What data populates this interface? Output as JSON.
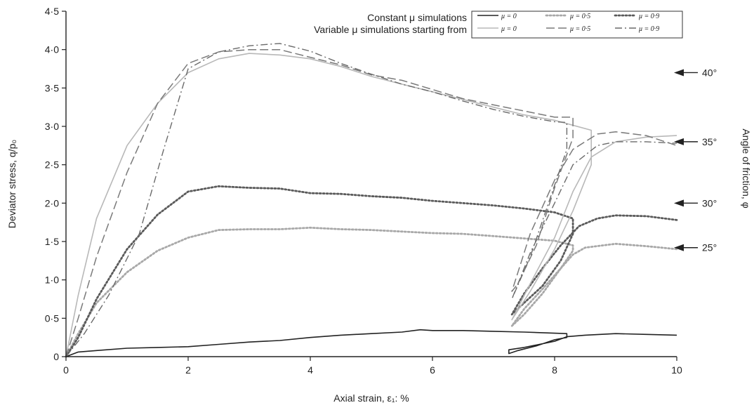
{
  "chart_data": {
    "type": "line",
    "xlabel": "Axial strain, ε₁: %",
    "ylabel": "Deviator stress, q/p₀",
    "y2label": "Angle of friction, φ",
    "xlim": [
      0,
      10
    ],
    "ylim": [
      0,
      4.5
    ],
    "x_ticks": [
      0,
      2,
      4,
      6,
      8,
      10
    ],
    "x_tick_labels": [
      "0",
      "2",
      "4",
      "6",
      "8",
      "10"
    ],
    "y_ticks": [
      0,
      0.5,
      1.0,
      1.5,
      2.0,
      2.5,
      3.0,
      3.5,
      4.0,
      4.5
    ],
    "y_tick_labels": [
      "0",
      "0·5",
      "1·0",
      "1·5",
      "2·0",
      "2·5",
      "3·0",
      "3·5",
      "4·0",
      "4·5"
    ],
    "grid": false,
    "legend": {
      "position": "top-right",
      "groups": [
        {
          "label": "Constant μ simulations",
          "entries": [
            "μ = 0",
            "μ = 0·5",
            "μ = 0·9"
          ]
        },
        {
          "label": "Variable μ simulations starting from",
          "entries": [
            "μ = 0",
            "μ = 0·5",
            "μ = 0·9"
          ]
        }
      ]
    },
    "friction_angle_markers": [
      {
        "label": "40°",
        "y": 3.7
      },
      {
        "label": "35°",
        "y": 2.8
      },
      {
        "label": "30°",
        "y": 2.0
      },
      {
        "label": "25°",
        "y": 1.42
      }
    ],
    "series": [
      {
        "group": "constant",
        "mu": "μ = 0",
        "color": "#222222",
        "dash": "solid",
        "points": [
          [
            0,
            0
          ],
          [
            0.2,
            0.06
          ],
          [
            0.5,
            0.08
          ],
          [
            1,
            0.11
          ],
          [
            1.5,
            0.12
          ],
          [
            2,
            0.13
          ],
          [
            2.5,
            0.16
          ],
          [
            3,
            0.19
          ],
          [
            3.5,
            0.21
          ],
          [
            4,
            0.25
          ],
          [
            4.5,
            0.28
          ],
          [
            5,
            0.3
          ],
          [
            5.5,
            0.32
          ],
          [
            5.8,
            0.35
          ],
          [
            6,
            0.34
          ],
          [
            6.5,
            0.34
          ],
          [
            7,
            0.33
          ],
          [
            7.5,
            0.32
          ],
          [
            8.2,
            0.3
          ],
          [
            8.2,
            0.25
          ],
          [
            8,
            0.22
          ],
          [
            7.7,
            0.14
          ],
          [
            7.4,
            0.08
          ],
          [
            7.25,
            0.04
          ],
          [
            7.25,
            0.09
          ],
          [
            7.5,
            0.12
          ],
          [
            8,
            0.2
          ],
          [
            8.2,
            0.26
          ],
          [
            8.5,
            0.28
          ],
          [
            9,
            0.3
          ],
          [
            9.5,
            0.29
          ],
          [
            10,
            0.28
          ]
        ]
      },
      {
        "group": "constant",
        "mu": "μ = 0·5",
        "color": "#a8a8a8",
        "dash": "dotted",
        "points": [
          [
            0,
            0
          ],
          [
            0.2,
            0.3
          ],
          [
            0.5,
            0.7
          ],
          [
            1,
            1.1
          ],
          [
            1.5,
            1.38
          ],
          [
            2,
            1.55
          ],
          [
            2.5,
            1.65
          ],
          [
            3,
            1.66
          ],
          [
            3.5,
            1.66
          ],
          [
            4,
            1.68
          ],
          [
            4.5,
            1.66
          ],
          [
            5,
            1.65
          ],
          [
            5.5,
            1.63
          ],
          [
            6,
            1.61
          ],
          [
            6.5,
            1.6
          ],
          [
            7,
            1.57
          ],
          [
            7.5,
            1.54
          ],
          [
            8,
            1.51
          ],
          [
            8.3,
            1.45
          ],
          [
            8.3,
            1.38
          ],
          [
            8.1,
            1.15
          ],
          [
            7.8,
            0.82
          ],
          [
            7.5,
            0.55
          ],
          [
            7.3,
            0.4
          ],
          [
            7.5,
            0.62
          ],
          [
            7.8,
            0.88
          ],
          [
            8.1,
            1.15
          ],
          [
            8.3,
            1.33
          ],
          [
            8.5,
            1.42
          ],
          [
            9,
            1.47
          ],
          [
            9.5,
            1.44
          ],
          [
            10,
            1.4
          ]
        ]
      },
      {
        "group": "constant",
        "mu": "μ = 0·9",
        "color": "#5a5a5a",
        "dash": "dotted",
        "points": [
          [
            0,
            0
          ],
          [
            0.2,
            0.25
          ],
          [
            0.5,
            0.75
          ],
          [
            1,
            1.4
          ],
          [
            1.5,
            1.85
          ],
          [
            2,
            2.15
          ],
          [
            2.5,
            2.22
          ],
          [
            3,
            2.2
          ],
          [
            3.5,
            2.19
          ],
          [
            4,
            2.13
          ],
          [
            4.5,
            2.12
          ],
          [
            5,
            2.09
          ],
          [
            5.5,
            2.07
          ],
          [
            6,
            2.03
          ],
          [
            6.5,
            2.0
          ],
          [
            7,
            1.97
          ],
          [
            7.5,
            1.93
          ],
          [
            8,
            1.88
          ],
          [
            8.3,
            1.8
          ],
          [
            8.3,
            1.6
          ],
          [
            8.1,
            1.25
          ],
          [
            7.8,
            0.92
          ],
          [
            7.5,
            0.7
          ],
          [
            7.3,
            0.55
          ],
          [
            7.5,
            0.82
          ],
          [
            7.8,
            1.15
          ],
          [
            8.1,
            1.45
          ],
          [
            8.4,
            1.7
          ],
          [
            8.7,
            1.8
          ],
          [
            9,
            1.84
          ],
          [
            9.5,
            1.83
          ],
          [
            10,
            1.78
          ]
        ]
      },
      {
        "group": "variable",
        "mu": "μ = 0",
        "color": "#b8b8b8",
        "dash": "solid",
        "points": [
          [
            0,
            0
          ],
          [
            0.2,
            0.8
          ],
          [
            0.5,
            1.8
          ],
          [
            1,
            2.75
          ],
          [
            1.5,
            3.3
          ],
          [
            2,
            3.7
          ],
          [
            2.5,
            3.88
          ],
          [
            3,
            3.95
          ],
          [
            3.5,
            3.93
          ],
          [
            4,
            3.88
          ],
          [
            4.5,
            3.78
          ],
          [
            5,
            3.65
          ],
          [
            5.5,
            3.55
          ],
          [
            6,
            3.45
          ],
          [
            6.5,
            3.35
          ],
          [
            7,
            3.25
          ],
          [
            7.5,
            3.15
          ],
          [
            8,
            3.08
          ],
          [
            8.6,
            2.95
          ],
          [
            8.6,
            2.5
          ],
          [
            8.3,
            1.9
          ],
          [
            8,
            1.4
          ],
          [
            7.6,
            0.85
          ],
          [
            7.3,
            0.48
          ],
          [
            7.6,
            0.95
          ],
          [
            8,
            1.55
          ],
          [
            8.3,
            2.15
          ],
          [
            8.6,
            2.6
          ],
          [
            9,
            2.8
          ],
          [
            9.5,
            2.86
          ],
          [
            10,
            2.88
          ]
        ]
      },
      {
        "group": "variable",
        "mu": "μ = 0·5",
        "color": "#7a7a7a",
        "dash": "longdash",
        "points": [
          [
            0,
            0
          ],
          [
            0.2,
            0.5
          ],
          [
            0.5,
            1.3
          ],
          [
            1,
            2.4
          ],
          [
            1.5,
            3.3
          ],
          [
            2,
            3.82
          ],
          [
            2.5,
            3.97
          ],
          [
            3,
            4.0
          ],
          [
            3.5,
            4.0
          ],
          [
            4,
            3.9
          ],
          [
            4.5,
            3.8
          ],
          [
            5,
            3.67
          ],
          [
            5.5,
            3.6
          ],
          [
            6,
            3.48
          ],
          [
            6.5,
            3.36
          ],
          [
            7,
            3.28
          ],
          [
            7.5,
            3.2
          ],
          [
            8,
            3.12
          ],
          [
            8.3,
            3.12
          ],
          [
            8.3,
            2.85
          ],
          [
            8,
            2.2
          ],
          [
            7.7,
            1.45
          ],
          [
            7.4,
            0.95
          ],
          [
            7.3,
            0.85
          ],
          [
            7.6,
            1.6
          ],
          [
            8,
            2.3
          ],
          [
            8.3,
            2.7
          ],
          [
            8.7,
            2.9
          ],
          [
            9,
            2.93
          ],
          [
            9.5,
            2.88
          ],
          [
            10,
            2.75
          ]
        ]
      },
      {
        "group": "variable",
        "mu": "μ = 0·9",
        "color": "#6a6a6a",
        "dash": "dashdot",
        "points": [
          [
            0,
            0
          ],
          [
            0.3,
            0.3
          ],
          [
            0.7,
            0.8
          ],
          [
            1.2,
            1.6
          ],
          [
            1.6,
            2.7
          ],
          [
            2,
            3.75
          ],
          [
            2.5,
            3.97
          ],
          [
            3,
            4.05
          ],
          [
            3.5,
            4.08
          ],
          [
            4,
            3.98
          ],
          [
            4.5,
            3.82
          ],
          [
            5,
            3.68
          ],
          [
            5.5,
            3.55
          ],
          [
            6,
            3.45
          ],
          [
            6.5,
            3.33
          ],
          [
            7,
            3.22
          ],
          [
            7.5,
            3.13
          ],
          [
            8,
            3.06
          ],
          [
            8.2,
            3.05
          ],
          [
            8.2,
            2.7
          ],
          [
            7.9,
            2.0
          ],
          [
            7.6,
            1.3
          ],
          [
            7.3,
            0.75
          ],
          [
            7.6,
            1.35
          ],
          [
            8,
            2.0
          ],
          [
            8.3,
            2.5
          ],
          [
            8.7,
            2.75
          ],
          [
            9,
            2.8
          ],
          [
            9.5,
            2.8
          ],
          [
            10,
            2.78
          ]
        ]
      }
    ]
  }
}
